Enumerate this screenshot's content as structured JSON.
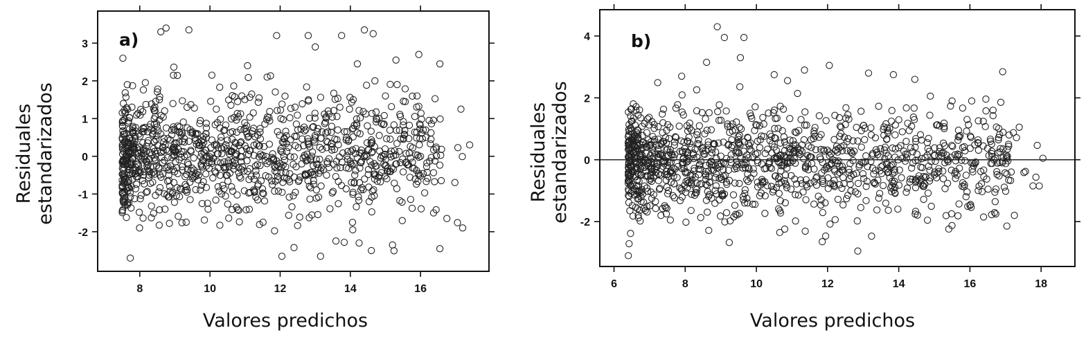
{
  "chart_data": [
    {
      "type": "scatter",
      "panel_label": "a)",
      "xlabel": "Valores predichos",
      "ylabel_lines": [
        "Residuales",
        "estandarizados"
      ],
      "xlim": [
        6.8,
        17.95
      ],
      "ylim": [
        -3.05,
        3.85
      ],
      "x_ticks": [
        8,
        10,
        12,
        14,
        16
      ],
      "y_ticks": [
        -2,
        -1,
        0,
        1,
        2,
        3
      ],
      "zero_line": false,
      "grid": false,
      "seed": 12345,
      "distribution": {
        "n": 1150,
        "x_min": 7.5,
        "x_max": 17.4,
        "x_decay": 5.0,
        "y_center": 0.05,
        "y_spread": 0.8
      },
      "highlights": [
        [
          8.6,
          3.3
        ],
        [
          8.75,
          3.4
        ],
        [
          9.4,
          3.35
        ],
        [
          11.9,
          3.2
        ],
        [
          14.4,
          3.35
        ],
        [
          14.65,
          3.25
        ],
        [
          13.75,
          3.2
        ],
        [
          12.8,
          3.2
        ],
        [
          15.95,
          2.7
        ],
        [
          16.55,
          2.45
        ],
        [
          17.15,
          1.25
        ],
        [
          17.4,
          0.3
        ],
        [
          17.2,
          -1.9
        ],
        [
          16.55,
          -2.45
        ],
        [
          16.75,
          -1.65
        ],
        [
          15.3,
          2.55
        ],
        [
          15.9,
          1.6
        ],
        [
          13.15,
          -2.65
        ],
        [
          12.05,
          -2.65
        ],
        [
          14.6,
          -2.5
        ],
        [
          15.2,
          -2.35
        ],
        [
          14.25,
          -2.3
        ],
        [
          13.0,
          2.9
        ],
        [
          14.2,
          2.45
        ],
        [
          14.7,
          2.0
        ]
      ]
    },
    {
      "type": "scatter",
      "panel_label": "b)",
      "xlabel": "Valores predichos",
      "ylabel_lines": [
        "Residuales",
        "estandarizados"
      ],
      "xlim": [
        5.6,
        18.95
      ],
      "ylim": [
        -3.45,
        4.85
      ],
      "x_ticks": [
        6,
        8,
        10,
        12,
        14,
        16,
        18
      ],
      "y_ticks": [
        -2,
        0,
        2,
        4
      ],
      "zero_line": true,
      "grid": false,
      "seed": 98765,
      "distribution": {
        "n": 1250,
        "x_min": 6.4,
        "x_max": 18.1,
        "x_decay": 5.5,
        "y_center": -0.05,
        "y_spread": 0.85
      },
      "highlights": [
        [
          8.9,
          4.3
        ],
        [
          9.1,
          3.95
        ],
        [
          9.65,
          3.95
        ],
        [
          9.55,
          3.3
        ],
        [
          8.6,
          3.15
        ],
        [
          12.85,
          -2.95
        ],
        [
          11.85,
          -2.65
        ],
        [
          17.25,
          -1.8
        ],
        [
          18.05,
          0.05
        ],
        [
          16.65,
          1.6
        ],
        [
          17.1,
          0.8
        ],
        [
          16.7,
          -1.05
        ],
        [
          14.45,
          2.6
        ],
        [
          12.05,
          3.05
        ],
        [
          13.15,
          2.8
        ],
        [
          6.45,
          -0.05
        ],
        [
          6.75,
          1.35
        ],
        [
          7.9,
          2.7
        ],
        [
          15.5,
          1.9
        ],
        [
          16.05,
          1.9
        ],
        [
          11.35,
          2.9
        ],
        [
          10.5,
          2.75
        ],
        [
          13.85,
          2.75
        ]
      ]
    }
  ]
}
